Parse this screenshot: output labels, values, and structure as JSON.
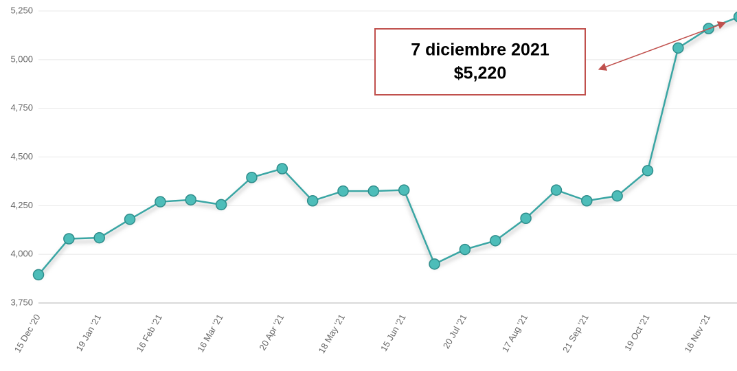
{
  "chart_data": {
    "type": "line",
    "categories": [
      "15 Dec '20",
      null,
      "19 Jan '21",
      null,
      "16 Feb '21",
      null,
      "16 Mar '21",
      null,
      "20 Apr '21",
      null,
      "18 May '21",
      null,
      "15 Jun '21",
      null,
      "20 Jul '21",
      null,
      "17 Aug '21",
      null,
      "21 Sep '21",
      null,
      "19 Oct '21",
      null,
      "16 Nov '21",
      null
    ],
    "series": [
      {
        "name": null,
        "color": "#3aa6a4",
        "values": [
          3895,
          4080,
          4085,
          4180,
          4270,
          4280,
          4255,
          4395,
          4440,
          4275,
          4325,
          4325,
          4330,
          3950,
          4025,
          4070,
          4185,
          4330,
          4275,
          4300,
          4430,
          5060,
          5160,
          5220
        ]
      }
    ],
    "ylim": [
      3750,
      5250
    ],
    "yticks": [
      {
        "value": 3750,
        "label": "3,750"
      },
      {
        "value": 4000,
        "label": "4,000"
      },
      {
        "value": 4250,
        "label": "4,250"
      },
      {
        "value": 4500,
        "label": "4,500"
      },
      {
        "value": 4750,
        "label": "4,750"
      },
      {
        "value": 5000,
        "label": "5,000"
      },
      {
        "value": 5250,
        "label": "5,250"
      }
    ],
    "grid": true,
    "annotations": [
      "7 diciembre 2021",
      "$5,220"
    ]
  }
}
